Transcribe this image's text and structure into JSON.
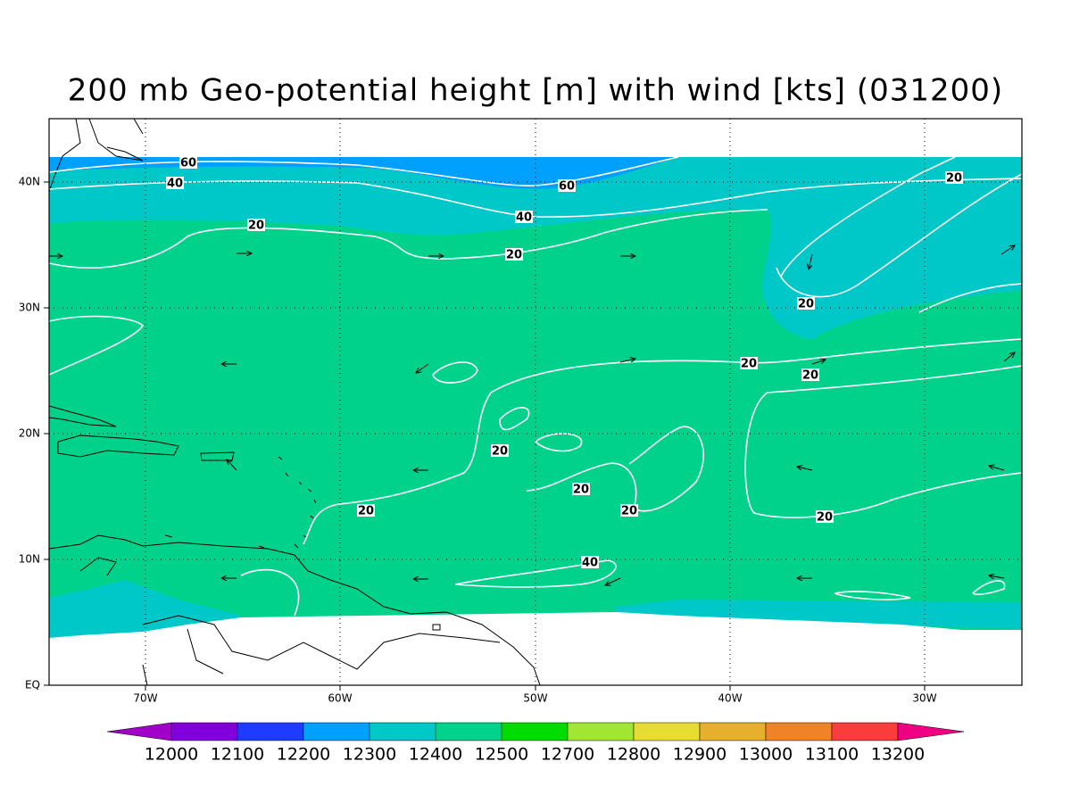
{
  "title": "200 mb Geo-potential height [m] with wind [kts] (031200)",
  "map": {
    "lon_labels": [
      "70W",
      "60W",
      "50W",
      "40W",
      "30W"
    ],
    "lat_labels": [
      "EQ",
      "10N",
      "20N",
      "30N",
      "40N"
    ],
    "contour_labels": [
      "60",
      "40",
      "60",
      "40",
      "20",
      "20",
      "20",
      "20",
      "20",
      "20",
      "20",
      "20",
      "20",
      "20",
      "20",
      "40"
    ]
  },
  "colorbar": {
    "labels": [
      "12000",
      "12100",
      "12200",
      "12300",
      "12400",
      "12500",
      "12700",
      "12800",
      "12900",
      "13000",
      "13100",
      "13200"
    ],
    "colors": [
      "#a000c8",
      "#8200dc",
      "#1e3cff",
      "#00a0ff",
      "#00c8c8",
      "#00d28c",
      "#00dc00",
      "#a0e632",
      "#e6dc32",
      "#e6af2d",
      "#f08228",
      "#fa3c3c",
      "#f00082"
    ]
  }
}
